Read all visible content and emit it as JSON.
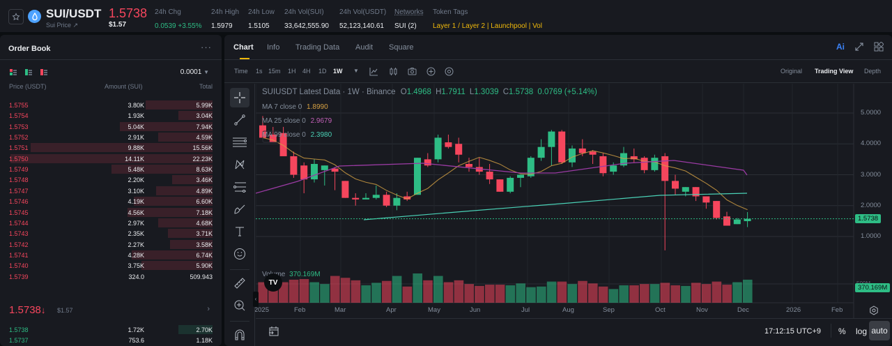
{
  "header": {
    "symbol": "SUI/USDT",
    "subtitle": "Sui Price",
    "last_price": "1.5738",
    "last_price_usd": "$1.57",
    "stats": [
      {
        "label": "24h Chg",
        "value": "0.0539 +3.55%",
        "color": "#2ebd85"
      },
      {
        "label": "24h High",
        "value": "1.5979"
      },
      {
        "label": "24h Low",
        "value": "1.5105"
      },
      {
        "label": "24h Vol(SUI)",
        "value": "33,642,555.90"
      },
      {
        "label": "24h Vol(USDT)",
        "value": "52,123,140.61"
      },
      {
        "label": "Networks",
        "value": "SUI (2)"
      },
      {
        "label": "Token Tags",
        "value": "Layer 1 / Layer 2 | Launchpool | Vol"
      }
    ]
  },
  "orderbook": {
    "title": "Order Book",
    "more_icon": "more-horizontal-icon",
    "tick_size": "0.0001",
    "columns": [
      "Price (USDT)",
      "Amount (SUI)",
      "Total"
    ],
    "asks": [
      {
        "price": "1.5755",
        "amount": "3.80K",
        "total": "5.99K",
        "depth": 0.33
      },
      {
        "price": "1.5754",
        "amount": "1.93K",
        "total": "3.04K",
        "depth": 0.17
      },
      {
        "price": "1.5753",
        "amount": "5.04K",
        "total": "7.94K",
        "depth": 0.46
      },
      {
        "price": "1.5752",
        "amount": "2.91K",
        "total": "4.59K",
        "depth": 0.27
      },
      {
        "price": "1.5751",
        "amount": "9.88K",
        "total": "15.56K",
        "depth": 0.9
      },
      {
        "price": "1.5750",
        "amount": "14.11K",
        "total": "22.23K",
        "depth": 1.0
      },
      {
        "price": "1.5749",
        "amount": "5.48K",
        "total": "8.63K",
        "depth": 0.5
      },
      {
        "price": "1.5748",
        "amount": "2.20K",
        "total": "3.46K",
        "depth": 0.2
      },
      {
        "price": "1.5747",
        "amount": "3.10K",
        "total": "4.89K",
        "depth": 0.28
      },
      {
        "price": "1.5746",
        "amount": "4.19K",
        "total": "6.60K",
        "depth": 0.39
      },
      {
        "price": "1.5745",
        "amount": "4.56K",
        "total": "7.18K",
        "depth": 0.42
      },
      {
        "price": "1.5744",
        "amount": "2.97K",
        "total": "4.68K",
        "depth": 0.27
      },
      {
        "price": "1.5743",
        "amount": "2.35K",
        "total": "3.71K",
        "depth": 0.22
      },
      {
        "price": "1.5742",
        "amount": "2.27K",
        "total": "3.58K",
        "depth": 0.21
      },
      {
        "price": "1.5741",
        "amount": "4.28K",
        "total": "6.74K",
        "depth": 0.4
      },
      {
        "price": "1.5740",
        "amount": "3.75K",
        "total": "5.90K",
        "depth": 0.35
      },
      {
        "price": "1.5739",
        "amount": "324.0",
        "total": "509.943",
        "depth": 0.0
      }
    ],
    "mid_price": "1.5738",
    "mid_arrow": "↓",
    "mid_usd": "$1.57",
    "bids": [
      {
        "price": "1.5738",
        "amount": "1.72K",
        "total": "2.70K",
        "depth": 0.17
      },
      {
        "price": "1.5737",
        "amount": "753.6",
        "total": "1.18K",
        "depth": 0.0
      }
    ]
  },
  "tabs": [
    "Chart",
    "Info",
    "Trading Data",
    "Audit",
    "Square"
  ],
  "active_tab": "Chart",
  "toolbar": {
    "intervals": [
      "Time",
      "1s",
      "15m",
      "1H",
      "4H",
      "1D",
      "1W"
    ],
    "active_interval": "1W",
    "views": [
      "Original",
      "Trading View",
      "Depth"
    ],
    "active_view": "Trading View",
    "ai_label": "Ai"
  },
  "chart": {
    "legend_title": "SUIUSDT Latest Data · 1W · Binance",
    "ohlc": {
      "O": "1.4968",
      "H": "1.7911",
      "L": "1.3039",
      "C": "1.5738",
      "chg": "0.0769 (+5.14%)"
    },
    "ma": [
      {
        "label": "MA 7 close 0",
        "value": "1.8990",
        "color": "#d6a143"
      },
      {
        "label": "MA 25 close 0",
        "value": "2.9679",
        "color": "#c260b7"
      },
      {
        "label": "MA 99 close 0",
        "value": "2.3980",
        "color": "#4ad1b6"
      }
    ],
    "price_axis": [
      "5.0000",
      "4.0000",
      "3.0000",
      "2.0000",
      "1.0000"
    ],
    "current_price_label": "1.5738",
    "volume_label": "Volume",
    "volume_value": "370.169M",
    "volume_axis_label": "500M",
    "time_axis": [
      "2025",
      "Feb",
      "Mar",
      "Apr",
      "May",
      "Jun",
      "Jul",
      "Aug",
      "Sep",
      "Oct",
      "Nov",
      "Dec",
      "2026",
      "Feb"
    ],
    "clock": "17:12:15 UTC+9",
    "bottom_buttons": [
      "%",
      "log",
      "auto"
    ]
  },
  "chart_data": {
    "type": "candlestick",
    "title": "SUIUSDT Latest Data · 1W · Binance",
    "interval": "1W",
    "ylim": [
      0.5,
      5.5
    ],
    "candles": [
      {
        "o": 4.6,
        "h": 4.9,
        "l": 4.3,
        "c": 4.2
      },
      {
        "o": 4.3,
        "h": 4.55,
        "l": 4.1,
        "c": 4.05
      },
      {
        "o": 4.35,
        "h": 4.55,
        "l": 3.7,
        "c": 3.6
      },
      {
        "o": 3.6,
        "h": 3.75,
        "l": 2.9,
        "c": 3.0
      },
      {
        "o": 3.3,
        "h": 3.4,
        "l": 2.4,
        "c": 2.85
      },
      {
        "o": 2.85,
        "h": 3.5,
        "l": 2.75,
        "c": 3.35
      },
      {
        "o": 3.15,
        "h": 3.3,
        "l": 2.65,
        "c": 3.3
      },
      {
        "o": 3.2,
        "h": 3.25,
        "l": 2.5,
        "c": 3.1
      },
      {
        "o": 2.8,
        "h": 2.8,
        "l": 2.25,
        "c": 2.25
      },
      {
        "o": 2.25,
        "h": 2.4,
        "l": 2.0,
        "c": 2.2
      },
      {
        "o": 2.2,
        "h": 2.4,
        "l": 2.2,
        "c": 2.25
      },
      {
        "o": 2.25,
        "h": 2.65,
        "l": 2.2,
        "c": 2.35
      },
      {
        "o": 2.35,
        "h": 2.45,
        "l": 1.95,
        "c": 2.0
      },
      {
        "o": 2.0,
        "h": 2.4,
        "l": 1.85,
        "c": 2.25
      },
      {
        "o": 2.3,
        "h": 2.45,
        "l": 2.15,
        "c": 2.2
      },
      {
        "o": 2.35,
        "h": 3.55,
        "l": 2.35,
        "c": 3.55
      },
      {
        "o": 3.5,
        "h": 3.7,
        "l": 3.25,
        "c": 3.3
      },
      {
        "o": 3.5,
        "h": 4.3,
        "l": 3.4,
        "c": 4.2
      },
      {
        "o": 4.05,
        "h": 4.3,
        "l": 3.85,
        "c": 3.9
      },
      {
        "o": 4.0,
        "h": 4.2,
        "l": 3.4,
        "c": 3.65
      },
      {
        "o": 3.35,
        "h": 3.55,
        "l": 3.1,
        "c": 3.25
      },
      {
        "o": 3.25,
        "h": 3.55,
        "l": 3.0,
        "c": 3.1
      },
      {
        "o": 3.1,
        "h": 3.35,
        "l": 2.7,
        "c": 2.85
      },
      {
        "o": 2.85,
        "h": 2.65,
        "l": 2.45,
        "c": 2.45
      },
      {
        "o": 2.45,
        "h": 2.95,
        "l": 2.4,
        "c": 2.9
      },
      {
        "o": 2.9,
        "h": 2.9,
        "l": 2.6,
        "c": 3.0
      },
      {
        "o": 2.95,
        "h": 3.6,
        "l": 2.9,
        "c": 3.55
      },
      {
        "o": 3.55,
        "h": 4.15,
        "l": 3.45,
        "c": 3.9
      },
      {
        "o": 3.9,
        "h": 4.45,
        "l": 3.3,
        "c": 4.4
      },
      {
        "o": 4.4,
        "h": 4.45,
        "l": 3.35,
        "c": 3.4
      },
      {
        "o": 3.4,
        "h": 3.95,
        "l": 3.25,
        "c": 3.85
      },
      {
        "o": 3.85,
        "h": 4.15,
        "l": 3.6,
        "c": 3.7
      },
      {
        "o": 3.75,
        "h": 3.8,
        "l": 3.35,
        "c": 3.65
      },
      {
        "o": 3.6,
        "h": 3.7,
        "l": 2.95,
        "c": 3.05
      },
      {
        "o": 3.1,
        "h": 3.4,
        "l": 3.0,
        "c": 3.3
      },
      {
        "o": 3.3,
        "h": 3.9,
        "l": 3.25,
        "c": 3.7
      },
      {
        "o": 3.6,
        "h": 3.85,
        "l": 3.4,
        "c": 3.5
      },
      {
        "o": 3.55,
        "h": 3.6,
        "l": 3.05,
        "c": 3.15
      },
      {
        "o": 3.15,
        "h": 3.65,
        "l": 3.1,
        "c": 3.55
      },
      {
        "o": 3.6,
        "h": 3.7,
        "l": 0.55,
        "c": 2.8
      },
      {
        "o": 2.8,
        "h": 3.0,
        "l": 2.35,
        "c": 2.55
      },
      {
        "o": 2.45,
        "h": 2.6,
        "l": 2.3,
        "c": 2.6
      },
      {
        "o": 2.6,
        "h": 2.6,
        "l": 2.15,
        "c": 2.3
      },
      {
        "o": 2.3,
        "h": 2.3,
        "l": 1.9,
        "c": 2.1
      },
      {
        "o": 2.15,
        "h": 2.15,
        "l": 1.55,
        "c": 1.6
      },
      {
        "o": 1.65,
        "h": 1.8,
        "l": 1.35,
        "c": 1.35
      },
      {
        "o": 1.4,
        "h": 1.6,
        "l": 1.4,
        "c": 1.55
      },
      {
        "o": 1.4968,
        "h": 1.7911,
        "l": 1.3039,
        "c": 1.5738
      }
    ],
    "volume_m": [
      330,
      340,
      330,
      370,
      380,
      330,
      300,
      430,
      400,
      360,
      280,
      320,
      350,
      430,
      260,
      470,
      360,
      430,
      330,
      360,
      300,
      270,
      290,
      290,
      280,
      310,
      250,
      260,
      340,
      340,
      300,
      350,
      310,
      260,
      220,
      280,
      280,
      300,
      300,
      320,
      280,
      270,
      320,
      300,
      340,
      290,
      330,
      370
    ],
    "volume_colors": "red-down / green-up",
    "ma_series": [
      "MA 7",
      "MA 25",
      "MA 99"
    ],
    "ma_last": [
      1.899,
      2.9679,
      2.398
    ],
    "xlabel": "",
    "ylabel": ""
  }
}
